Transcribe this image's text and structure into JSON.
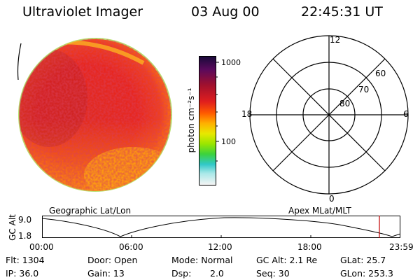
{
  "header": {
    "instrument": "Ultraviolet Imager",
    "date": "03 Aug 00",
    "time": "22:45:31 UT"
  },
  "colorbar": {
    "label": "photon cm⁻²s⁻¹",
    "ticks": [
      "1000",
      "100"
    ],
    "colors": [
      "#1a0a3a",
      "#6a0a5a",
      "#b00a28",
      "#e81e1e",
      "#ff6a00",
      "#ffb400",
      "#e6e600",
      "#9be600",
      "#3cd23c",
      "#32c8c8",
      "#a0e6e6",
      "#f0f0f0"
    ]
  },
  "polar_plot": {
    "mlt_labels": {
      "top": "12",
      "left": "18",
      "right": "6",
      "bottom": "0"
    },
    "lat_labels": [
      "60",
      "70",
      "80"
    ]
  },
  "orbit_plot": {
    "left_label": "Geographic Lat/Lon",
    "right_label": "Apex MLat/MLT",
    "y_axis_label": "GC Alt",
    "y_ticks": [
      "9.0",
      "1.8"
    ],
    "x_ticks": [
      "00:00",
      "06:00",
      "12:00",
      "18:00",
      "23:59"
    ]
  },
  "status": {
    "flt": "Flt: 1304",
    "ip": "IP: 36.0",
    "door": "Door: Open",
    "gain": "Gain: 13",
    "mode": "Mode: Normal",
    "dsp": "Dsp:",
    "dsp_value": "2.0",
    "gc_alt": "GC Alt: 2.1 Re",
    "seq": "Seq: 30",
    "glat": "GLat:  25.7",
    "glon": "GLon: 253.3"
  }
}
